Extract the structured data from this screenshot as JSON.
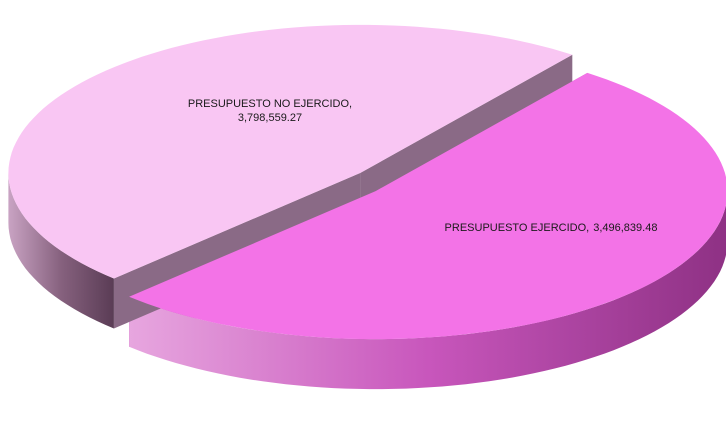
{
  "chart_data": {
    "type": "pie",
    "categories": [
      "PRESUPUESTO NO EJERCIDO",
      "PRESUPUESTO EJERCIDO"
    ],
    "values": [
      3798559.27,
      3496839.48
    ],
    "value_labels": [
      "3,798,559.27",
      "3,496,839.48"
    ],
    "colors": [
      "#f373e7",
      "#f9c6f3"
    ]
  }
}
